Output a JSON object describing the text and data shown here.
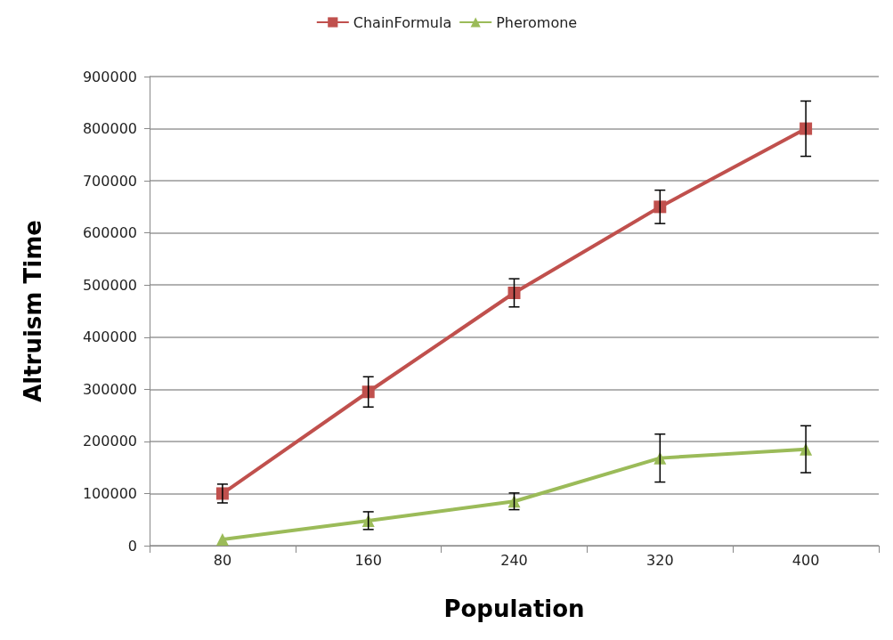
{
  "chart_data": {
    "type": "line",
    "xlabel": "Population",
    "ylabel": "Altruism Time",
    "categories": [
      "80",
      "160",
      "240",
      "320",
      "400"
    ],
    "series": [
      {
        "name": "ChainFormula",
        "color": "#c0504d",
        "marker": "square",
        "values": [
          100000,
          295000,
          485000,
          650000,
          800000
        ],
        "errors": [
          18000,
          29000,
          27000,
          32000,
          53000
        ]
      },
      {
        "name": "Pheromone",
        "color": "#9bbb59",
        "marker": "triangle",
        "values": [
          12000,
          48000,
          85000,
          168000,
          185000
        ],
        "errors": [
          null,
          17000,
          16000,
          46000,
          45000
        ]
      }
    ],
    "ylim": [
      0,
      900000
    ],
    "yticks": [
      0,
      100000,
      200000,
      300000,
      400000,
      500000,
      600000,
      700000,
      800000,
      900000
    ],
    "grid": "y",
    "legend": "top"
  }
}
